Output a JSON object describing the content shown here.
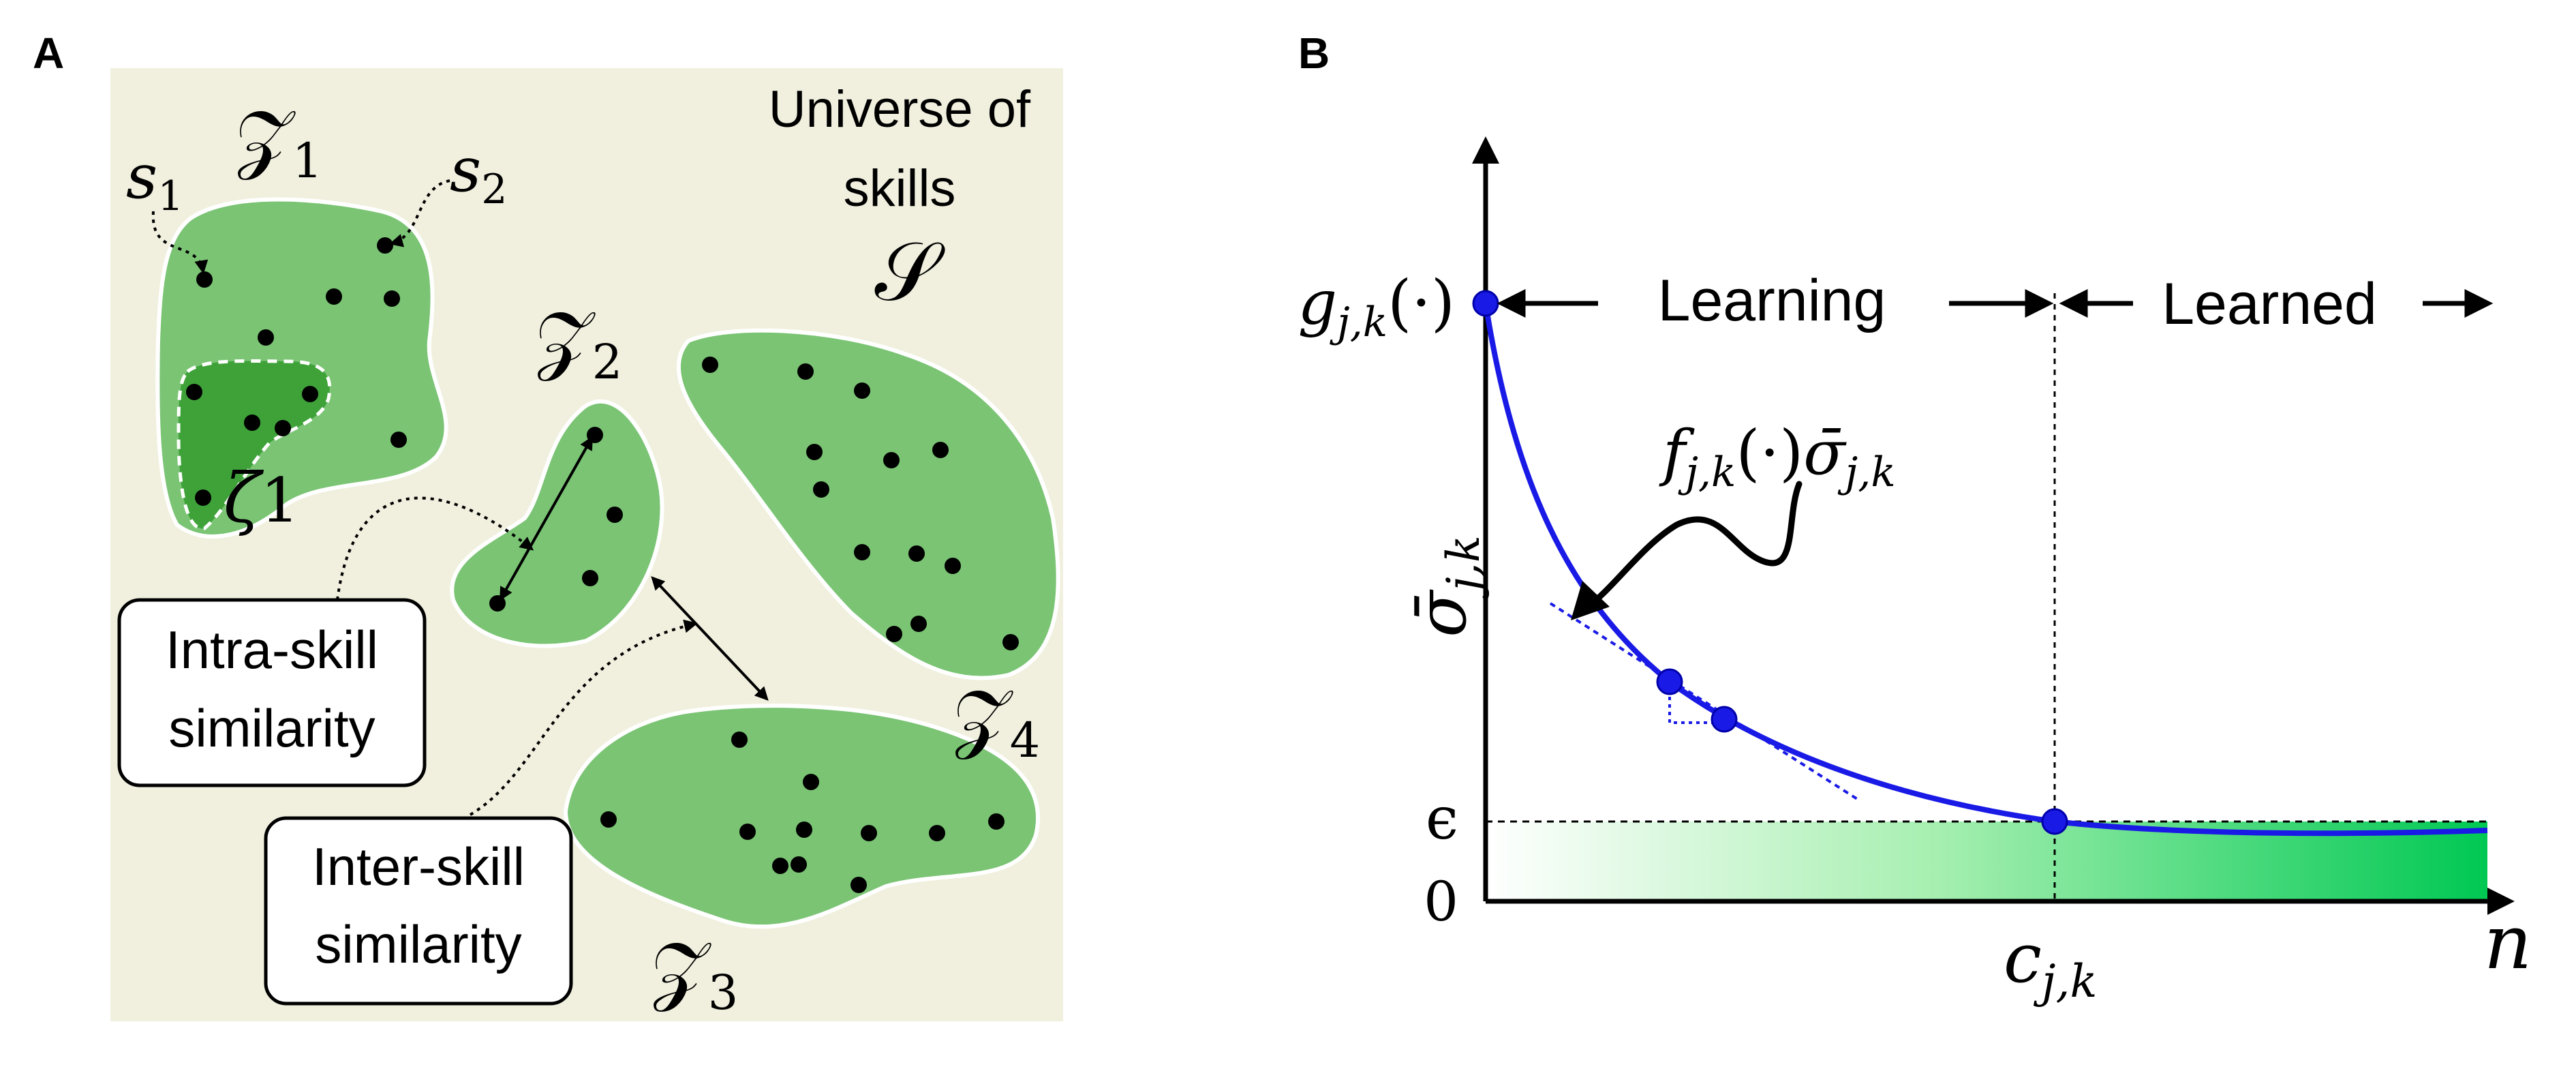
{
  "panel_a": {
    "letter": "A",
    "universe_line1": "Universe of",
    "universe_line2": "skills",
    "universe_symbol": "𝒮",
    "skills": [
      {
        "symbol": "𝒵",
        "sub": "1"
      },
      {
        "symbol": "𝒵",
        "sub": "2"
      },
      {
        "symbol": "𝒵",
        "sub": "3"
      },
      {
        "symbol": "𝒵",
        "sub": "4"
      }
    ],
    "sample_labels": [
      {
        "symbol": "s",
        "sub": "1"
      },
      {
        "symbol": "s",
        "sub": "2"
      }
    ],
    "subskill_label": {
      "symbol": "ζ",
      "sub": "1"
    },
    "intra_box": {
      "line1": "Intra-skill",
      "line2": "similarity"
    },
    "inter_box": {
      "line1": "Inter-skill",
      "line2": "similarity"
    },
    "colors": {
      "background": "#f1f0df",
      "skill_fill": "#7ac474",
      "subskill_fill": "#3ea239",
      "outline": "#ffffff"
    }
  },
  "panel_b": {
    "letter": "B",
    "y_axis_label": {
      "symbol": "σ̄",
      "sub": "j,k"
    },
    "x_axis_label": "n",
    "y_ticks": {
      "g_label": "g",
      "g_sub": "j,k",
      "g_args": "(·)",
      "epsilon": "ϵ",
      "zero": "0"
    },
    "x_tick": {
      "symbol": "c",
      "sub": "j,k"
    },
    "learning_label": "Learning",
    "learned_label": "Learned",
    "annotation": {
      "f": "f",
      "f_sub": "j,k",
      "args": "(·)",
      "sigma": "σ̄",
      "sigma_sub": "j,k"
    },
    "colors": {
      "curve": "#1a1ae6",
      "point": "#1a1ae6",
      "gradient_start": "#ffffff",
      "gradient_end": "#00c853"
    }
  }
}
